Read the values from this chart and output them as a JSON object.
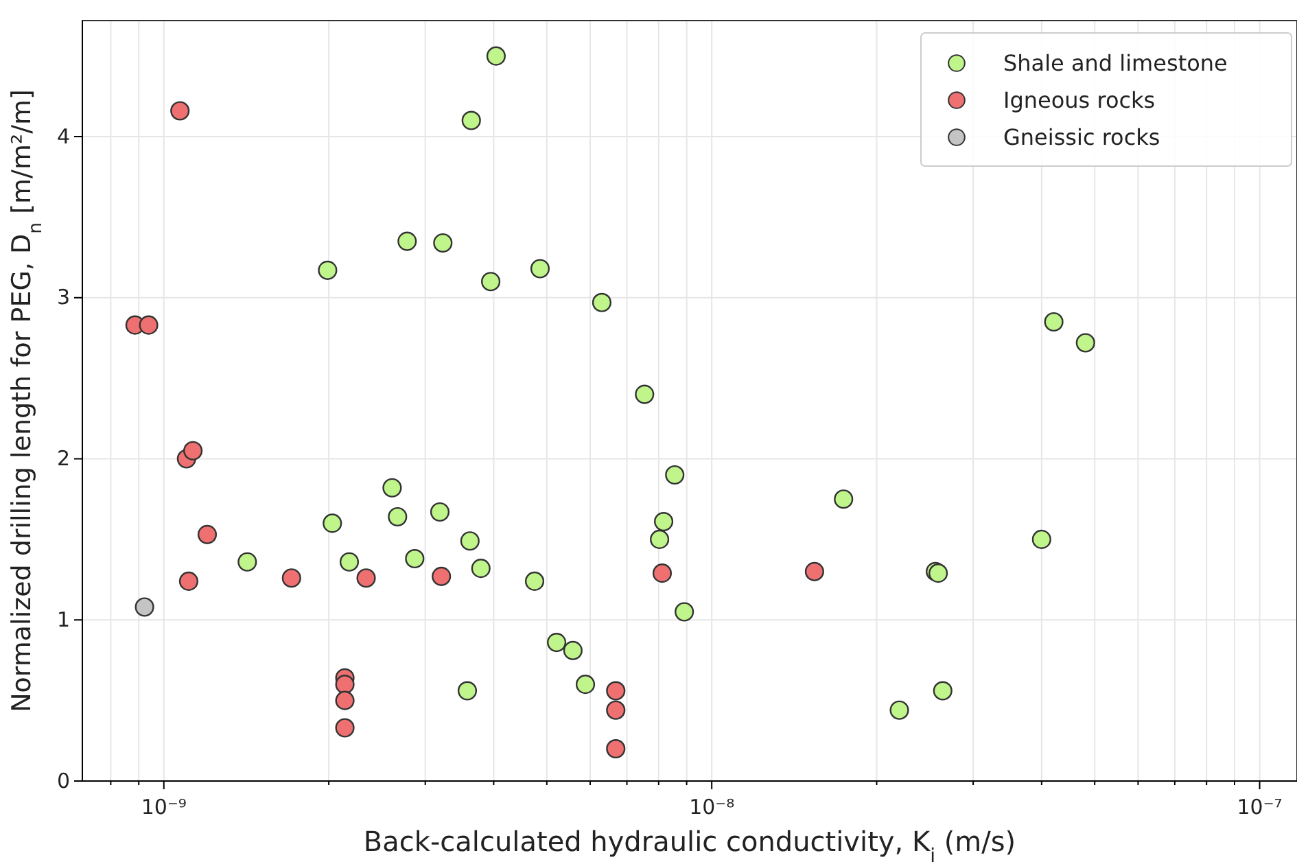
{
  "chart_data": {
    "type": "scatter",
    "xlabel": "Back-calculated hydraulic conductivity, K$_{i}$ (m/s)",
    "ylabel": "Normalized drilling length for PEG, D$_{n}$ [m/m²/m]",
    "log": "x",
    "grid": true,
    "legend": "top right",
    "marker": "circle",
    "xlim": [
      7.1e-10,
      1.17e-07
    ],
    "ylim": [
      0,
      4.72
    ],
    "xticks": [
      {
        "value": 8e-10,
        "label": null
      },
      {
        "value": 9e-10,
        "label": null
      },
      {
        "value": 1e-09,
        "label": "10⁻⁹"
      },
      {
        "value": 2e-09,
        "label": null
      },
      {
        "value": 3e-09,
        "label": null
      },
      {
        "value": 4e-09,
        "label": null
      },
      {
        "value": 5e-09,
        "label": null
      },
      {
        "value": 6e-09,
        "label": null
      },
      {
        "value": 7e-09,
        "label": null
      },
      {
        "value": 8e-09,
        "label": null
      },
      {
        "value": 9e-09,
        "label": null
      },
      {
        "value": 1e-08,
        "label": "10⁻⁸"
      },
      {
        "value": 2e-08,
        "label": null
      },
      {
        "value": 3e-08,
        "label": null
      },
      {
        "value": 4e-08,
        "label": null
      },
      {
        "value": 5e-08,
        "label": null
      },
      {
        "value": 6e-08,
        "label": null
      },
      {
        "value": 7e-08,
        "label": null
      },
      {
        "value": 8e-08,
        "label": null
      },
      {
        "value": 9e-08,
        "label": null
      },
      {
        "value": 1e-07,
        "label": "10⁻⁷"
      }
    ],
    "yticks": [
      0,
      1,
      2,
      3,
      4
    ],
    "series": [
      {
        "name": "Shale and limestone",
        "color": "#bff58a",
        "x": [
          4.04e-09,
          3.64e-09,
          1.99e-09,
          2.78e-09,
          3.23e-09,
          3.95e-09,
          4.86e-09,
          6.3e-09,
          7.54e-09,
          4.21e-08,
          4.81e-08,
          8.56e-09,
          1.74e-08,
          4e-08,
          2.56e-08,
          2.59e-08,
          2.2e-08,
          2.64e-08,
          2.61e-09,
          2.67e-09,
          2.03e-09,
          3.19e-09,
          3.62e-09,
          1.42e-09,
          2.18e-09,
          2.87e-09,
          3.79e-09,
          4.75e-09,
          8.17e-09,
          8.03e-09,
          8.91e-09,
          5.21e-09,
          5.58e-09,
          5.88e-09,
          3.58e-09
        ],
        "values": [
          4.5,
          4.1,
          3.17,
          3.35,
          3.34,
          3.1,
          3.18,
          2.97,
          2.4,
          2.85,
          2.72,
          1.9,
          1.75,
          1.5,
          1.3,
          1.29,
          0.44,
          0.56,
          1.82,
          1.64,
          1.6,
          1.67,
          1.49,
          1.36,
          1.36,
          1.38,
          1.32,
          1.24,
          1.61,
          1.5,
          1.05,
          0.86,
          0.81,
          0.6,
          0.56
        ]
      },
      {
        "name": "Igneous rocks",
        "color": "#ef7070",
        "x": [
          1.07e-09,
          8.86e-10,
          9.38e-10,
          1.1e-09,
          1.13e-09,
          1.2e-09,
          1.11e-09,
          1.71e-09,
          2.34e-09,
          3.21e-09,
          8.12e-09,
          2.14e-09,
          2.14e-09,
          2.14e-09,
          2.14e-09,
          6.68e-09,
          6.68e-09,
          6.68e-09,
          1.54e-08
        ],
        "values": [
          4.16,
          2.83,
          2.83,
          2.0,
          2.05,
          1.53,
          1.24,
          1.26,
          1.26,
          1.27,
          1.29,
          0.64,
          0.6,
          0.5,
          0.33,
          0.56,
          0.44,
          0.2,
          1.3
        ]
      },
      {
        "name": "Gneissic rocks",
        "color": "#c4c4c4",
        "x": [
          9.22e-10
        ],
        "values": [
          1.08
        ]
      }
    ]
  }
}
